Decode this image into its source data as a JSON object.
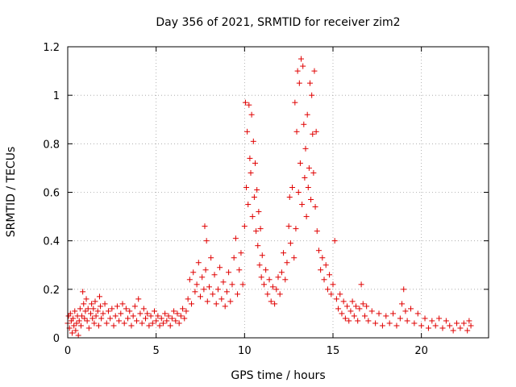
{
  "chart_data": {
    "type": "scatter",
    "title": "Day 356 of 2021, SRMTID for receiver zim2",
    "xlabel": "GPS time / hours",
    "ylabel": "SRMTID / TECUs",
    "xlim": [
      0,
      23.8
    ],
    "ylim": [
      0,
      1.2
    ],
    "x_ticks": [
      0,
      5,
      10,
      15,
      20
    ],
    "x_tick_labels": [
      "0",
      "5",
      "10",
      "15",
      "20"
    ],
    "y_ticks": [
      0,
      0.2,
      0.4,
      0.6,
      0.8,
      1,
      1.2
    ],
    "y_tick_labels": [
      "0",
      "0.2",
      "0.4",
      "0.6",
      "0.8",
      "1",
      "1.2"
    ],
    "grid": true,
    "marker": "plus",
    "color": "#e00000",
    "series": [
      {
        "name": "zim2",
        "points": [
          [
            0.0,
            0.06
          ],
          [
            0.05,
            0.09
          ],
          [
            0.1,
            0.04
          ],
          [
            0.15,
            0.1
          ],
          [
            0.2,
            0.07
          ],
          [
            0.25,
            0.02
          ],
          [
            0.3,
            0.08
          ],
          [
            0.35,
            0.05
          ],
          [
            0.4,
            0.11
          ],
          [
            0.45,
            0.03
          ],
          [
            0.5,
            0.06
          ],
          [
            0.55,
            0.09
          ],
          [
            0.6,
            0.01
          ],
          [
            0.65,
            0.07
          ],
          [
            0.7,
            0.12
          ],
          [
            0.75,
            0.05
          ],
          [
            0.8,
            0.09
          ],
          [
            0.85,
            0.19
          ],
          [
            0.9,
            0.14
          ],
          [
            0.95,
            0.08
          ],
          [
            1.0,
            0.11
          ],
          [
            1.05,
            0.16
          ],
          [
            1.1,
            0.07
          ],
          [
            1.15,
            0.12
          ],
          [
            1.2,
            0.04
          ],
          [
            1.3,
            0.1
          ],
          [
            1.35,
            0.14
          ],
          [
            1.4,
            0.08
          ],
          [
            1.45,
            0.12
          ],
          [
            1.5,
            0.06
          ],
          [
            1.55,
            0.15
          ],
          [
            1.6,
            0.09
          ],
          [
            1.7,
            0.11
          ],
          [
            1.75,
            0.05
          ],
          [
            1.8,
            0.17
          ],
          [
            1.85,
            0.13
          ],
          [
            1.9,
            0.08
          ],
          [
            2.0,
            0.1
          ],
          [
            2.1,
            0.14
          ],
          [
            2.2,
            0.06
          ],
          [
            2.3,
            0.11
          ],
          [
            2.4,
            0.08
          ],
          [
            2.5,
            0.12
          ],
          [
            2.6,
            0.05
          ],
          [
            2.7,
            0.09
          ],
          [
            2.8,
            0.13
          ],
          [
            2.9,
            0.07
          ],
          [
            3.0,
            0.1
          ],
          [
            3.1,
            0.14
          ],
          [
            3.2,
            0.06
          ],
          [
            3.3,
            0.12
          ],
          [
            3.4,
            0.08
          ],
          [
            3.5,
            0.11
          ],
          [
            3.6,
            0.05
          ],
          [
            3.7,
            0.09
          ],
          [
            3.8,
            0.13
          ],
          [
            3.9,
            0.07
          ],
          [
            4.0,
            0.16
          ],
          [
            4.1,
            0.1
          ],
          [
            4.2,
            0.06
          ],
          [
            4.3,
            0.12
          ],
          [
            4.4,
            0.08
          ],
          [
            4.5,
            0.1
          ],
          [
            4.6,
            0.05
          ],
          [
            4.7,
            0.09
          ],
          [
            4.8,
            0.06
          ],
          [
            4.9,
            0.11
          ],
          [
            5.0,
            0.07
          ],
          [
            5.1,
            0.09
          ],
          [
            5.2,
            0.05
          ],
          [
            5.3,
            0.08
          ],
          [
            5.4,
            0.06
          ],
          [
            5.5,
            0.1
          ],
          [
            5.6,
            0.07
          ],
          [
            5.7,
            0.09
          ],
          [
            5.8,
            0.05
          ],
          [
            5.9,
            0.08
          ],
          [
            6.0,
            0.11
          ],
          [
            6.1,
            0.07
          ],
          [
            6.2,
            0.1
          ],
          [
            6.3,
            0.06
          ],
          [
            6.4,
            0.09
          ],
          [
            6.5,
            0.12
          ],
          [
            6.6,
            0.08
          ],
          [
            6.7,
            0.11
          ],
          [
            6.8,
            0.16
          ],
          [
            6.9,
            0.24
          ],
          [
            7.0,
            0.14
          ],
          [
            7.1,
            0.27
          ],
          [
            7.2,
            0.19
          ],
          [
            7.3,
            0.22
          ],
          [
            7.4,
            0.31
          ],
          [
            7.5,
            0.17
          ],
          [
            7.6,
            0.25
          ],
          [
            7.7,
            0.2
          ],
          [
            7.75,
            0.46
          ],
          [
            7.8,
            0.28
          ],
          [
            7.85,
            0.4
          ],
          [
            7.9,
            0.15
          ],
          [
            8.0,
            0.21
          ],
          [
            8.1,
            0.33
          ],
          [
            8.2,
            0.18
          ],
          [
            8.3,
            0.26
          ],
          [
            8.4,
            0.14
          ],
          [
            8.5,
            0.2
          ],
          [
            8.6,
            0.29
          ],
          [
            8.7,
            0.16
          ],
          [
            8.8,
            0.23
          ],
          [
            8.9,
            0.13
          ],
          [
            9.0,
            0.19
          ],
          [
            9.1,
            0.27
          ],
          [
            9.2,
            0.15
          ],
          [
            9.3,
            0.22
          ],
          [
            9.4,
            0.33
          ],
          [
            9.5,
            0.41
          ],
          [
            9.6,
            0.18
          ],
          [
            9.7,
            0.28
          ],
          [
            9.8,
            0.35
          ],
          [
            9.9,
            0.22
          ],
          [
            10.0,
            0.46
          ],
          [
            10.05,
            0.97
          ],
          [
            10.1,
            0.62
          ],
          [
            10.15,
            0.85
          ],
          [
            10.2,
            0.55
          ],
          [
            10.25,
            0.96
          ],
          [
            10.3,
            0.74
          ],
          [
            10.35,
            0.68
          ],
          [
            10.4,
            0.92
          ],
          [
            10.45,
            0.5
          ],
          [
            10.5,
            0.81
          ],
          [
            10.55,
            0.58
          ],
          [
            10.6,
            0.72
          ],
          [
            10.65,
            0.44
          ],
          [
            10.7,
            0.61
          ],
          [
            10.75,
            0.38
          ],
          [
            10.8,
            0.52
          ],
          [
            10.85,
            0.3
          ],
          [
            10.9,
            0.45
          ],
          [
            10.95,
            0.25
          ],
          [
            11.0,
            0.34
          ],
          [
            11.1,
            0.22
          ],
          [
            11.2,
            0.28
          ],
          [
            11.3,
            0.18
          ],
          [
            11.4,
            0.24
          ],
          [
            11.5,
            0.15
          ],
          [
            11.6,
            0.21
          ],
          [
            11.7,
            0.14
          ],
          [
            11.8,
            0.2
          ],
          [
            11.9,
            0.25
          ],
          [
            12.0,
            0.18
          ],
          [
            12.1,
            0.27
          ],
          [
            12.2,
            0.35
          ],
          [
            12.3,
            0.24
          ],
          [
            12.4,
            0.31
          ],
          [
            12.5,
            0.46
          ],
          [
            12.55,
            0.58
          ],
          [
            12.6,
            0.39
          ],
          [
            12.7,
            0.62
          ],
          [
            12.8,
            0.33
          ],
          [
            12.85,
            0.97
          ],
          [
            12.9,
            0.45
          ],
          [
            12.95,
            0.85
          ],
          [
            13.0,
            1.1
          ],
          [
            13.05,
            0.6
          ],
          [
            13.1,
            1.05
          ],
          [
            13.15,
            0.72
          ],
          [
            13.2,
            1.15
          ],
          [
            13.25,
            0.55
          ],
          [
            13.3,
            1.12
          ],
          [
            13.35,
            0.88
          ],
          [
            13.4,
            0.66
          ],
          [
            13.45,
            0.78
          ],
          [
            13.5,
            0.5
          ],
          [
            13.55,
            0.92
          ],
          [
            13.6,
            0.62
          ],
          [
            13.65,
            0.7
          ],
          [
            13.7,
            1.05
          ],
          [
            13.75,
            0.57
          ],
          [
            13.8,
            1.0
          ],
          [
            13.85,
            0.84
          ],
          [
            13.9,
            0.68
          ],
          [
            13.95,
            1.1
          ],
          [
            14.0,
            0.54
          ],
          [
            14.05,
            0.85
          ],
          [
            14.1,
            0.44
          ],
          [
            14.2,
            0.36
          ],
          [
            14.3,
            0.28
          ],
          [
            14.4,
            0.33
          ],
          [
            14.5,
            0.24
          ],
          [
            14.6,
            0.3
          ],
          [
            14.7,
            0.2
          ],
          [
            14.8,
            0.26
          ],
          [
            14.9,
            0.18
          ],
          [
            15.0,
            0.22
          ],
          [
            15.1,
            0.4
          ],
          [
            15.2,
            0.16
          ],
          [
            15.3,
            0.12
          ],
          [
            15.4,
            0.18
          ],
          [
            15.5,
            0.1
          ],
          [
            15.6,
            0.15
          ],
          [
            15.7,
            0.08
          ],
          [
            15.8,
            0.13
          ],
          [
            15.9,
            0.07
          ],
          [
            16.0,
            0.11
          ],
          [
            16.1,
            0.15
          ],
          [
            16.2,
            0.09
          ],
          [
            16.3,
            0.13
          ],
          [
            16.4,
            0.07
          ],
          [
            16.5,
            0.12
          ],
          [
            16.6,
            0.22
          ],
          [
            16.7,
            0.14
          ],
          [
            16.8,
            0.09
          ],
          [
            16.9,
            0.13
          ],
          [
            17.0,
            0.07
          ],
          [
            17.2,
            0.11
          ],
          [
            17.4,
            0.06
          ],
          [
            17.6,
            0.1
          ],
          [
            17.8,
            0.05
          ],
          [
            18.0,
            0.09
          ],
          [
            18.2,
            0.06
          ],
          [
            18.4,
            0.1
          ],
          [
            18.6,
            0.05
          ],
          [
            18.8,
            0.08
          ],
          [
            18.9,
            0.14
          ],
          [
            19.0,
            0.2
          ],
          [
            19.1,
            0.11
          ],
          [
            19.2,
            0.07
          ],
          [
            19.4,
            0.12
          ],
          [
            19.6,
            0.06
          ],
          [
            19.8,
            0.1
          ],
          [
            20.0,
            0.05
          ],
          [
            20.2,
            0.08
          ],
          [
            20.4,
            0.04
          ],
          [
            20.6,
            0.07
          ],
          [
            20.8,
            0.05
          ],
          [
            21.0,
            0.08
          ],
          [
            21.2,
            0.04
          ],
          [
            21.4,
            0.07
          ],
          [
            21.6,
            0.05
          ],
          [
            21.8,
            0.03
          ],
          [
            22.0,
            0.06
          ],
          [
            22.2,
            0.04
          ],
          [
            22.4,
            0.06
          ],
          [
            22.6,
            0.03
          ],
          [
            22.7,
            0.07
          ],
          [
            22.8,
            0.05
          ]
        ]
      }
    ]
  }
}
